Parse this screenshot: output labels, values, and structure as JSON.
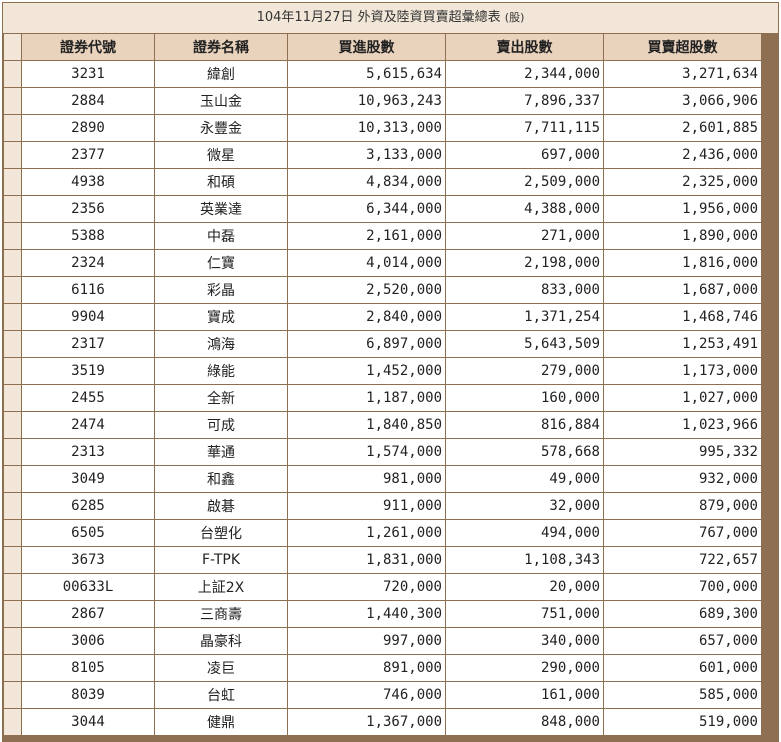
{
  "caption": {
    "title": "104年11月27日 外資及陸資買賣超彙總表",
    "unit": "(股)"
  },
  "headers": [
    "證券代號",
    "證券名稱",
    "買進股數",
    "賣出股數",
    "買賣超股數"
  ],
  "rows": [
    [
      "3231",
      "緯創",
      "5,615,634",
      "2,344,000",
      "3,271,634"
    ],
    [
      "2884",
      "玉山金",
      "10,963,243",
      "7,896,337",
      "3,066,906"
    ],
    [
      "2890",
      "永豐金",
      "10,313,000",
      "7,711,115",
      "2,601,885"
    ],
    [
      "2377",
      "微星",
      "3,133,000",
      "697,000",
      "2,436,000"
    ],
    [
      "4938",
      "和碩",
      "4,834,000",
      "2,509,000",
      "2,325,000"
    ],
    [
      "2356",
      "英業達",
      "6,344,000",
      "4,388,000",
      "1,956,000"
    ],
    [
      "5388",
      "中磊",
      "2,161,000",
      "271,000",
      "1,890,000"
    ],
    [
      "2324",
      "仁寶",
      "4,014,000",
      "2,198,000",
      "1,816,000"
    ],
    [
      "6116",
      "彩晶",
      "2,520,000",
      "833,000",
      "1,687,000"
    ],
    [
      "9904",
      "寶成",
      "2,840,000",
      "1,371,254",
      "1,468,746"
    ],
    [
      "2317",
      "鴻海",
      "6,897,000",
      "5,643,509",
      "1,253,491"
    ],
    [
      "3519",
      "綠能",
      "1,452,000",
      "279,000",
      "1,173,000"
    ],
    [
      "2455",
      "全新",
      "1,187,000",
      "160,000",
      "1,027,000"
    ],
    [
      "2474",
      "可成",
      "1,840,850",
      "816,884",
      "1,023,966"
    ],
    [
      "2313",
      "華通",
      "1,574,000",
      "578,668",
      "995,332"
    ],
    [
      "3049",
      "和鑫",
      "981,000",
      "49,000",
      "932,000"
    ],
    [
      "6285",
      "啟碁",
      "911,000",
      "32,000",
      "879,000"
    ],
    [
      "6505",
      "台塑化",
      "1,261,000",
      "494,000",
      "767,000"
    ],
    [
      "3673",
      "F-TPK",
      "1,831,000",
      "1,108,343",
      "722,657"
    ],
    [
      "00633L",
      "上証2X",
      "720,000",
      "20,000",
      "700,000"
    ],
    [
      "2867",
      "三商壽",
      "1,440,300",
      "751,000",
      "689,300"
    ],
    [
      "3006",
      "晶豪科",
      "997,000",
      "340,000",
      "657,000"
    ],
    [
      "8105",
      "凌巨",
      "891,000",
      "290,000",
      "601,000"
    ],
    [
      "8039",
      "台虹",
      "746,000",
      "161,000",
      "585,000"
    ],
    [
      "3044",
      "健鼎",
      "1,367,000",
      "848,000",
      "519,000"
    ]
  ]
}
